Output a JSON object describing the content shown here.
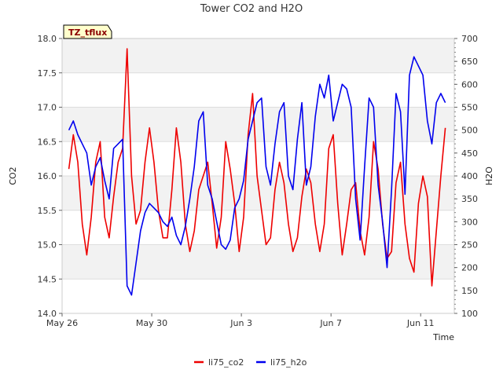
{
  "chart_data": {
    "type": "line",
    "title": "Tower CO2 and H2O",
    "tag": "TZ_tflux",
    "xlabel": "Time",
    "ylabel": "CO2",
    "y2label": "H2O",
    "x_tick_labels": [
      "May 26",
      "May 30",
      "Jun 3",
      "Jun 7",
      "Jun 11"
    ],
    "x_tick_days": [
      0,
      4,
      8,
      12,
      16
    ],
    "xlim": [
      0,
      17.5
    ],
    "ylim": [
      14.0,
      18.0
    ],
    "y_ticks": [
      "14.0",
      "14.5",
      "15.0",
      "15.5",
      "16.0",
      "16.5",
      "17.0",
      "17.5",
      "18.0"
    ],
    "y2lim": [
      100,
      700
    ],
    "y2_ticks": [
      "100",
      "150",
      "200",
      "250",
      "300",
      "350",
      "400",
      "450",
      "500",
      "550",
      "600",
      "650",
      "700"
    ],
    "grid": true,
    "legend_position": "bottom",
    "series": [
      {
        "name": "li75_co2",
        "axis": "left",
        "color": "#ee0000",
        "x": [
          0.3,
          0.5,
          0.7,
          0.9,
          1.1,
          1.3,
          1.5,
          1.7,
          1.9,
          2.1,
          2.3,
          2.5,
          2.7,
          2.9,
          3.1,
          3.3,
          3.5,
          3.7,
          3.9,
          4.1,
          4.3,
          4.5,
          4.7,
          4.9,
          5.1,
          5.3,
          5.5,
          5.7,
          5.9,
          6.1,
          6.3,
          6.5,
          6.7,
          6.9,
          7.1,
          7.3,
          7.5,
          7.7,
          7.9,
          8.1,
          8.3,
          8.5,
          8.7,
          8.9,
          9.1,
          9.3,
          9.5,
          9.7,
          9.9,
          10.1,
          10.3,
          10.5,
          10.7,
          10.9,
          11.1,
          11.3,
          11.5,
          11.7,
          11.9,
          12.1,
          12.3,
          12.5,
          12.7,
          12.9,
          13.1,
          13.3,
          13.5,
          13.7,
          13.9,
          14.1,
          14.3,
          14.5,
          14.7,
          14.9,
          15.1,
          15.3,
          15.5,
          15.7,
          15.9,
          16.1,
          16.3,
          16.5,
          16.7,
          16.9,
          17.1
        ],
        "values": [
          16.1,
          16.6,
          16.2,
          15.3,
          14.85,
          15.4,
          16.2,
          16.5,
          15.4,
          15.1,
          15.7,
          16.2,
          16.4,
          17.85,
          16.0,
          15.3,
          15.5,
          16.2,
          16.7,
          16.2,
          15.5,
          15.1,
          15.1,
          15.8,
          16.7,
          16.2,
          15.3,
          14.9,
          15.2,
          15.8,
          16.0,
          16.2,
          15.6,
          14.95,
          15.4,
          16.5,
          16.1,
          15.6,
          14.9,
          15.4,
          16.6,
          17.2,
          16.0,
          15.5,
          15.0,
          15.1,
          15.8,
          16.2,
          15.9,
          15.3,
          14.9,
          15.1,
          15.7,
          16.1,
          15.9,
          15.3,
          14.9,
          15.3,
          16.4,
          16.6,
          15.6,
          14.85,
          15.3,
          15.8,
          15.9,
          15.2,
          14.85,
          15.4,
          16.5,
          16.1,
          15.3,
          14.8,
          14.9,
          15.9,
          16.2,
          15.3,
          14.8,
          14.6,
          15.6,
          16.0,
          15.7,
          14.4,
          15.2,
          16.0,
          16.7
        ]
      },
      {
        "name": "li75_h2o",
        "axis": "right",
        "color": "#0000ee",
        "x": [
          0.3,
          0.5,
          0.7,
          0.9,
          1.1,
          1.3,
          1.5,
          1.7,
          1.9,
          2.1,
          2.3,
          2.5,
          2.7,
          2.9,
          3.1,
          3.3,
          3.5,
          3.7,
          3.9,
          4.1,
          4.3,
          4.5,
          4.7,
          4.9,
          5.1,
          5.3,
          5.5,
          5.7,
          5.9,
          6.1,
          6.3,
          6.5,
          6.7,
          6.9,
          7.1,
          7.3,
          7.5,
          7.7,
          7.9,
          8.1,
          8.3,
          8.5,
          8.7,
          8.9,
          9.1,
          9.3,
          9.5,
          9.7,
          9.9,
          10.1,
          10.3,
          10.5,
          10.7,
          10.9,
          11.1,
          11.3,
          11.5,
          11.7,
          11.9,
          12.1,
          12.3,
          12.5,
          12.7,
          12.9,
          13.1,
          13.3,
          13.5,
          13.7,
          13.9,
          14.1,
          14.3,
          14.5,
          14.7,
          14.9,
          15.1,
          15.3,
          15.5,
          15.7,
          15.9,
          16.1,
          16.3,
          16.5,
          16.7,
          16.9,
          17.1
        ],
        "values": [
          500,
          520,
          490,
          470,
          450,
          380,
          420,
          440,
          390,
          350,
          460,
          470,
          480,
          160,
          140,
          210,
          280,
          320,
          340,
          330,
          320,
          300,
          290,
          310,
          270,
          250,
          290,
          350,
          420,
          520,
          540,
          380,
          350,
          300,
          250,
          240,
          260,
          330,
          350,
          390,
          480,
          520,
          560,
          570,
          420,
          380,
          470,
          540,
          560,
          400,
          370,
          480,
          560,
          380,
          420,
          530,
          600,
          570,
          620,
          520,
          560,
          600,
          590,
          550,
          350,
          260,
          420,
          570,
          550,
          380,
          300,
          200,
          370,
          580,
          540,
          360,
          620,
          660,
          640,
          620,
          520,
          470,
          560,
          580,
          560
        ]
      }
    ]
  }
}
